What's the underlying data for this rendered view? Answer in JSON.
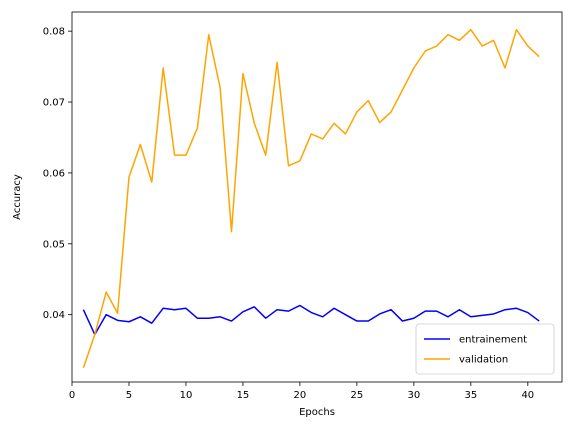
{
  "chart_data": {
    "type": "line",
    "title": "",
    "xlabel": "Epochs",
    "ylabel": "Accuracy",
    "xlim": [
      -0.0,
      43.0
    ],
    "ylim": [
      0.0305,
      0.0827
    ],
    "xticks": [
      0,
      5,
      10,
      15,
      20,
      25,
      30,
      35,
      40
    ],
    "yticks": [
      0.04,
      0.05,
      0.06,
      0.07,
      0.08
    ],
    "ytick_labels": [
      "0.04",
      "0.05",
      "0.06",
      "0.07",
      "0.08"
    ],
    "grid": false,
    "legend_position": "lower-right",
    "x": [
      1,
      2,
      3,
      4,
      5,
      6,
      7,
      8,
      9,
      10,
      11,
      12,
      13,
      14,
      15,
      16,
      17,
      18,
      19,
      20,
      21,
      22,
      23,
      24,
      25,
      26,
      27,
      28,
      29,
      30,
      31,
      32,
      33,
      34,
      35,
      36,
      37,
      38,
      39,
      40,
      41
    ],
    "series": [
      {
        "name": "entrainement",
        "color": "#0000ff",
        "values": [
          0.0407,
          0.0372,
          0.04,
          0.0392,
          0.039,
          0.0397,
          0.0388,
          0.0409,
          0.0407,
          0.0409,
          0.0395,
          0.0395,
          0.0397,
          0.0391,
          0.0404,
          0.0411,
          0.0395,
          0.0407,
          0.0405,
          0.0413,
          0.0403,
          0.0397,
          0.0409,
          0.04,
          0.0391,
          0.0391,
          0.0401,
          0.0407,
          0.0391,
          0.0395,
          0.0405,
          0.0405,
          0.0397,
          0.0407,
          0.0397,
          0.0399,
          0.0401,
          0.0407,
          0.0409,
          0.0403,
          0.0391
        ]
      },
      {
        "name": "validation",
        "color": "#ffa500",
        "values": [
          0.0325,
          0.0372,
          0.0432,
          0.0402,
          0.0594,
          0.064,
          0.0587,
          0.0748,
          0.0625,
          0.0625,
          0.0663,
          0.0795,
          0.072,
          0.0517,
          0.074,
          0.067,
          0.0625,
          0.0756,
          0.061,
          0.0617,
          0.0655,
          0.0648,
          0.067,
          0.0655,
          0.0686,
          0.0702,
          0.0671,
          0.0686,
          0.0717,
          0.0748,
          0.0772,
          0.0779,
          0.0795,
          0.0787,
          0.0802,
          0.0779,
          0.0787,
          0.0748,
          0.0802,
          0.0779,
          0.0764
        ]
      }
    ]
  }
}
